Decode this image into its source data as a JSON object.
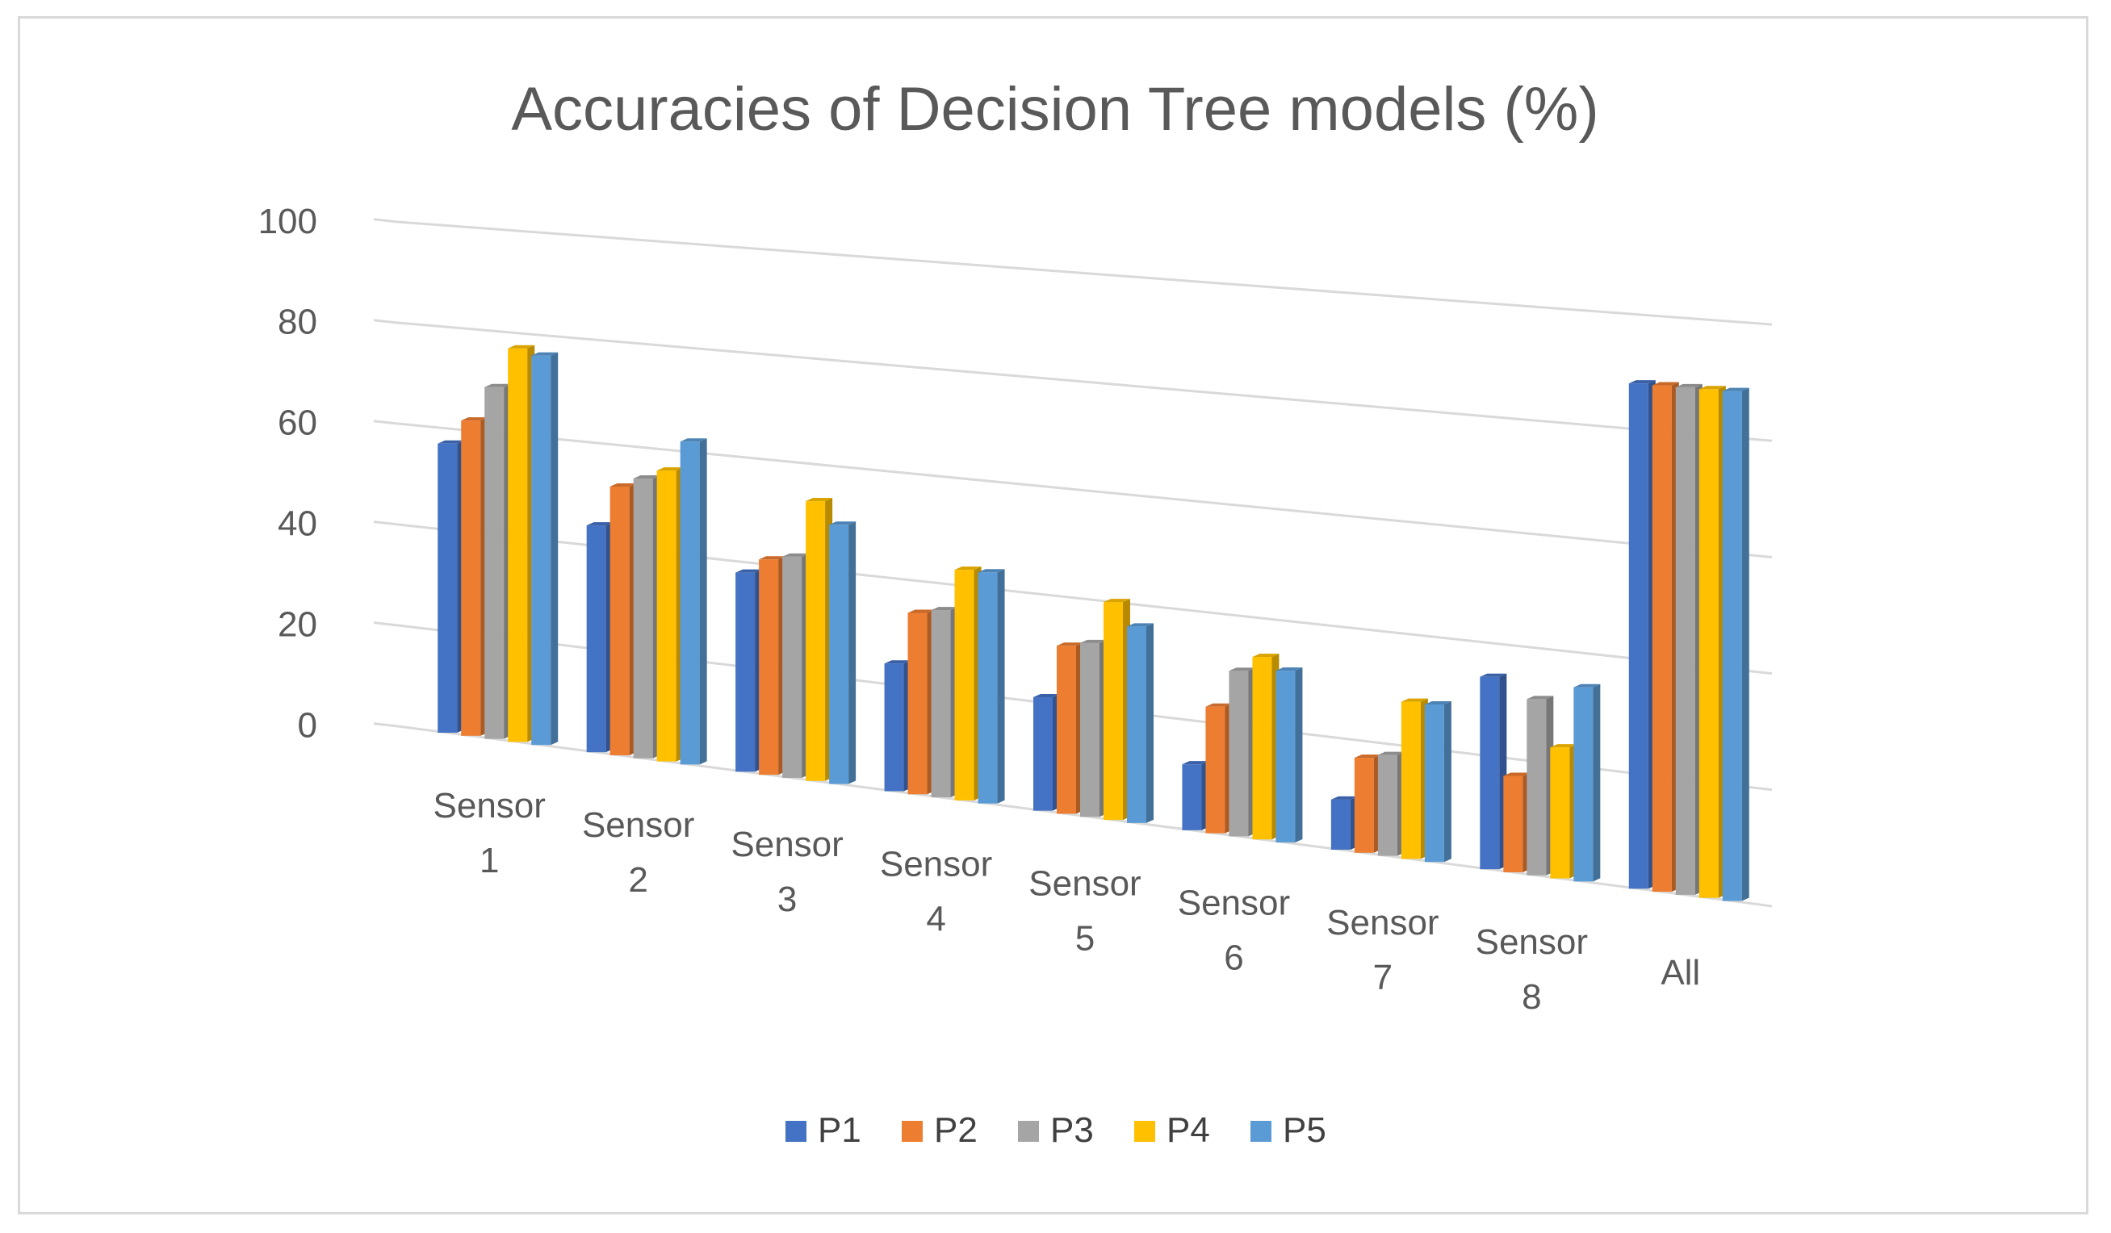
{
  "chart_data": {
    "type": "bar",
    "title": "Accuracies of Decision Tree models (%)",
    "xlabel": "",
    "ylabel": "",
    "ylim": [
      0,
      100
    ],
    "yticks": [
      "0",
      "20",
      "40",
      "60",
      "80",
      "100"
    ],
    "grid": true,
    "legend_position": "bottom",
    "categories": [
      [
        "Sensor",
        "1"
      ],
      [
        "Sensor",
        "2"
      ],
      [
        "Sensor",
        "3"
      ],
      [
        "Sensor",
        "4"
      ],
      [
        "Sensor",
        "5"
      ],
      [
        "Sensor",
        "6"
      ],
      [
        "Sensor",
        "7"
      ],
      [
        "Sensor",
        "8"
      ],
      [
        "All"
      ]
    ],
    "series": [
      {
        "name": "P1",
        "color": "#4472c4",
        "values": [
          57,
          44,
          38,
          24,
          21,
          12,
          9,
          34,
          88
        ]
      },
      {
        "name": "P2",
        "color": "#ed7d31",
        "values": [
          62,
          52,
          41,
          34,
          31,
          23,
          17,
          17,
          88
        ]
      },
      {
        "name": "P3",
        "color": "#a5a5a5",
        "values": [
          69,
          54,
          42,
          35,
          32,
          30,
          18,
          31,
          88
        ]
      },
      {
        "name": "P4",
        "color": "#ffc000",
        "values": [
          77,
          56,
          53,
          43,
          40,
          33,
          28,
          23,
          88
        ]
      },
      {
        "name": "P5",
        "color": "#5b9bd5",
        "values": [
          76,
          62,
          49,
          43,
          36,
          31,
          28,
          34,
          88
        ]
      }
    ]
  }
}
